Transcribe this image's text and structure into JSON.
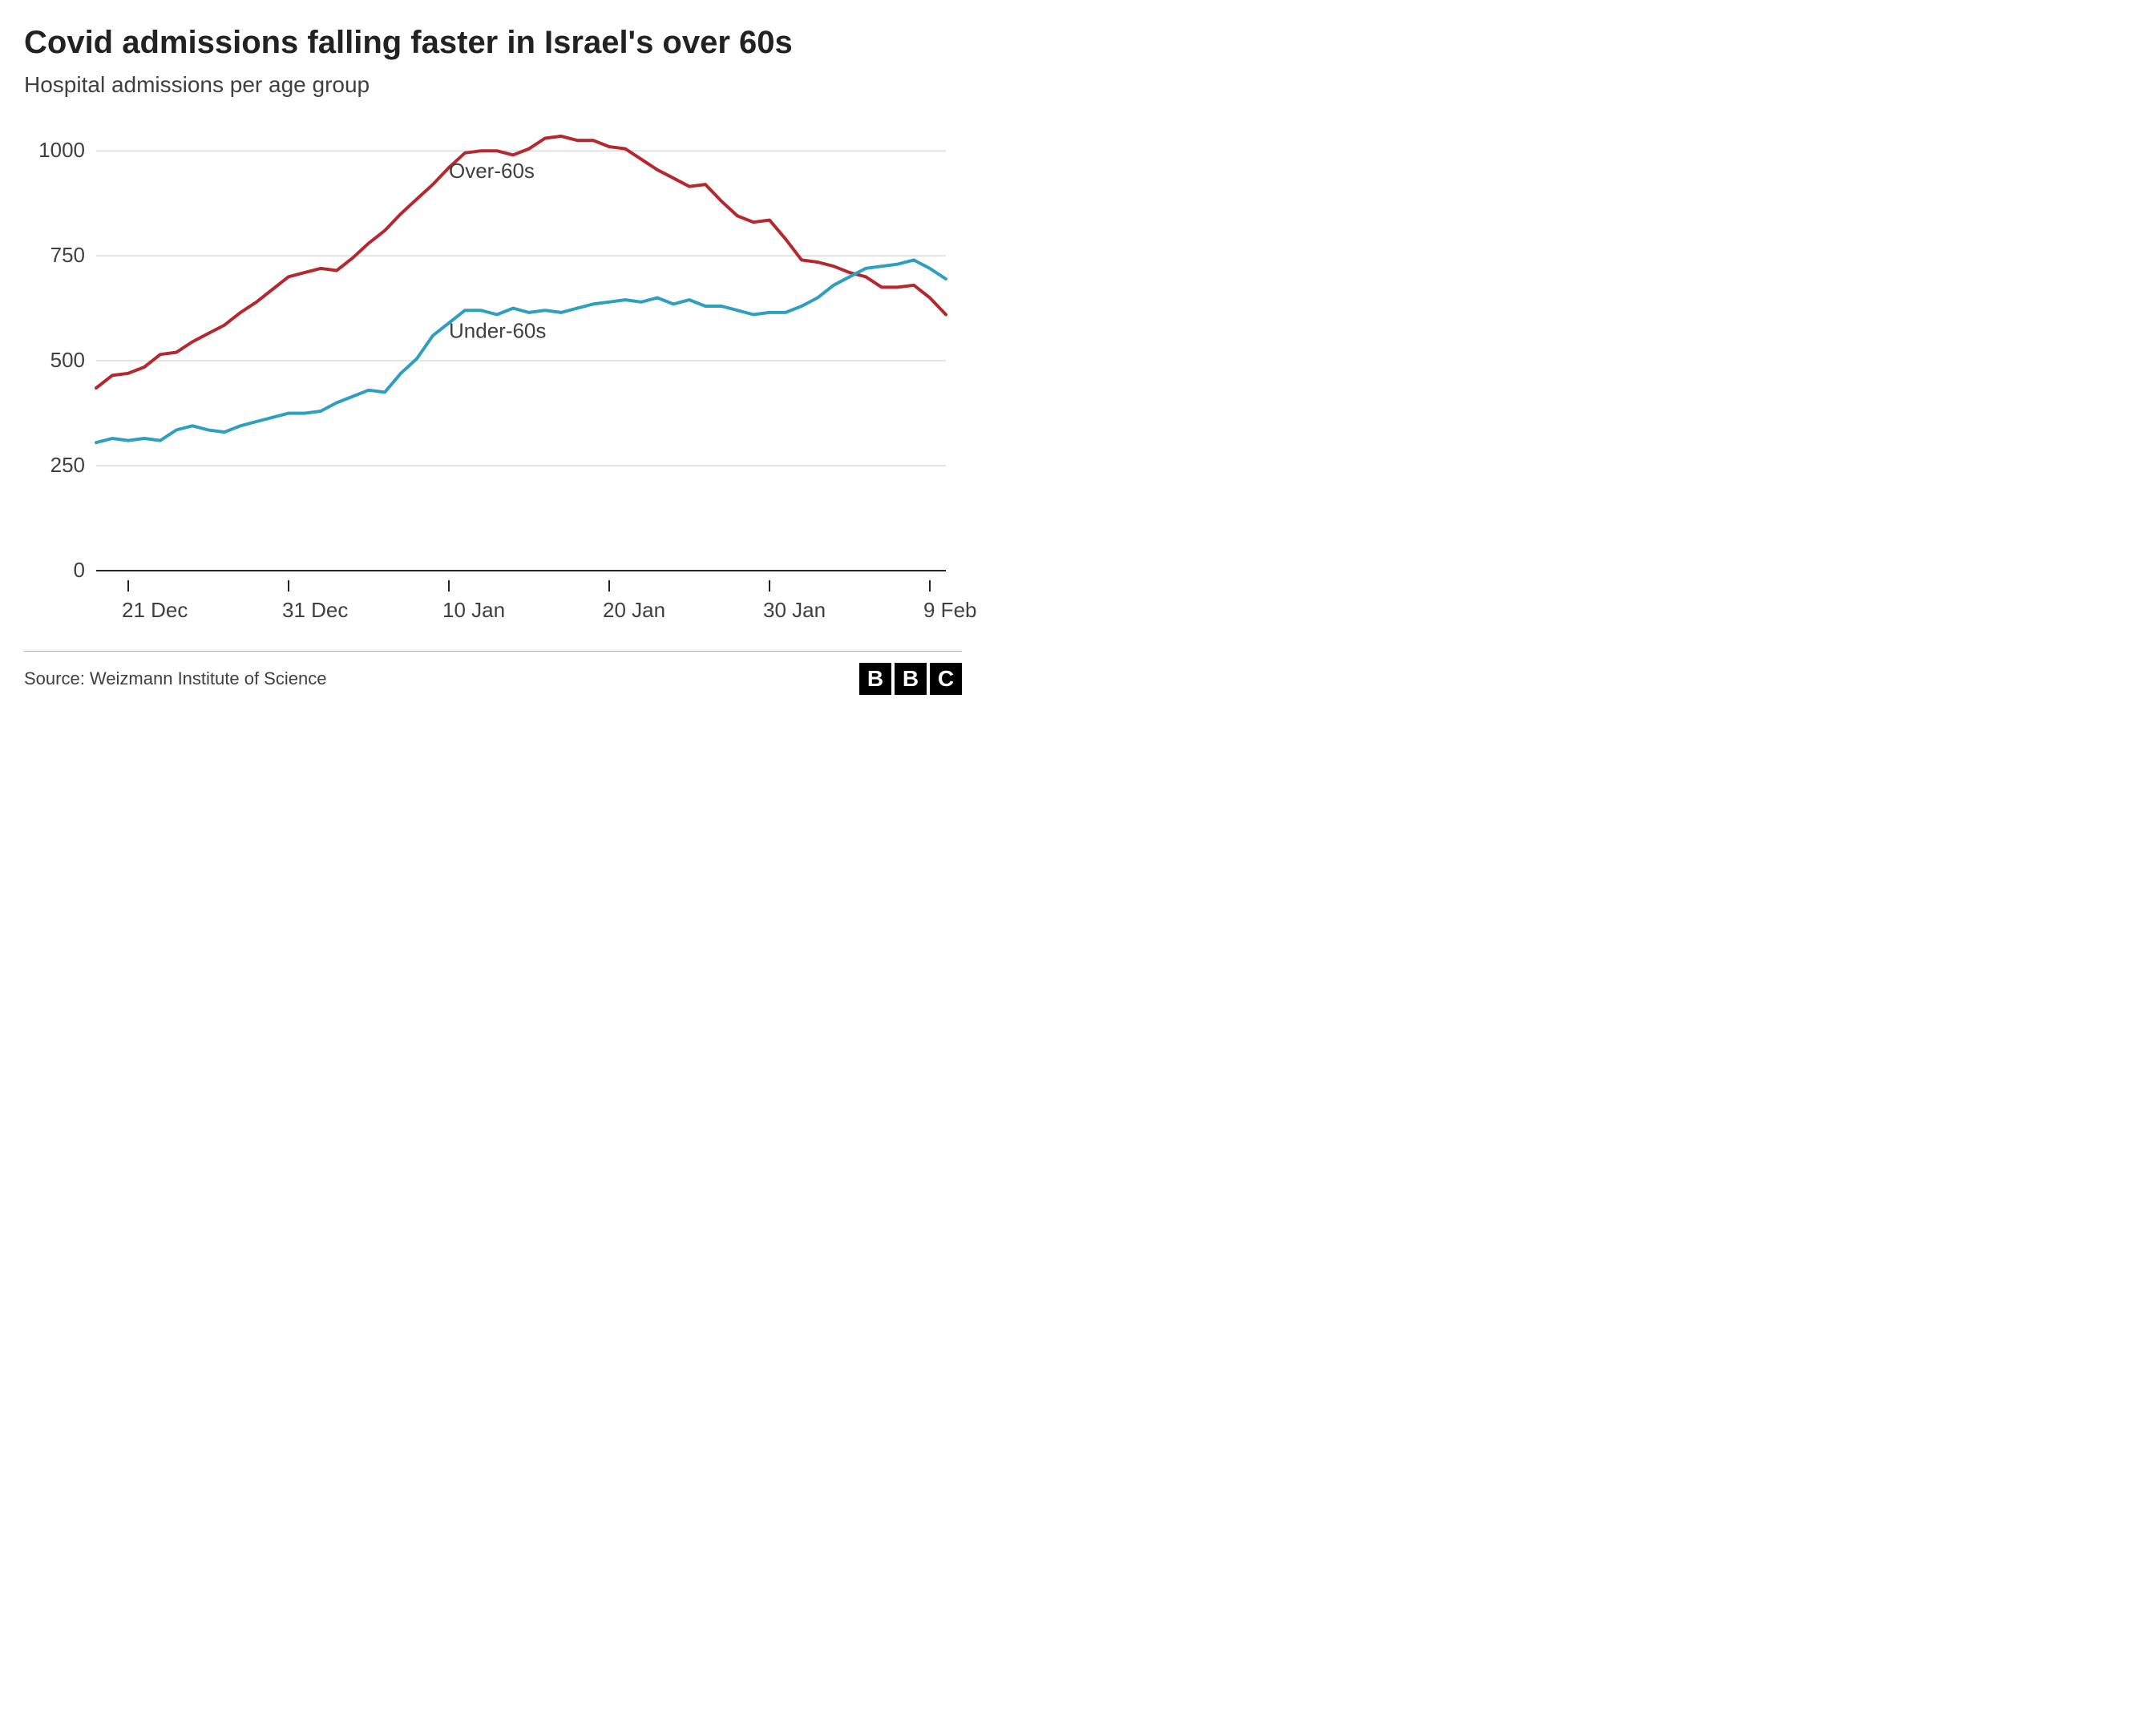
{
  "title": "Covid admissions falling faster in Israel's over 60s",
  "subtitle": "Hospital admissions per age group",
  "source": "Source: Weizmann Institute of Science",
  "logo": {
    "letters": [
      "B",
      "B",
      "C"
    ]
  },
  "chart": {
    "type": "line",
    "background_color": "#ffffff",
    "grid_color": "#dcdcdc",
    "axis_color": "#222222",
    "text_color": "#404040",
    "title_fontsize": 40,
    "subtitle_fontsize": 28,
    "tick_fontsize": 26,
    "label_fontsize": 26,
    "line_width": 4,
    "ylim": [
      0,
      1050
    ],
    "yticks": [
      0,
      250,
      500,
      750,
      1000
    ],
    "x_range_days": 53,
    "xticks": [
      {
        "day": 2,
        "label": "21 Dec"
      },
      {
        "day": 12,
        "label": "31 Dec"
      },
      {
        "day": 22,
        "label": "10 Jan"
      },
      {
        "day": 32,
        "label": "20 Jan"
      },
      {
        "day": 42,
        "label": "30 Jan"
      },
      {
        "day": 52,
        "label": "9 Feb"
      }
    ],
    "series": [
      {
        "name": "Over-60s",
        "label": "Over-60s",
        "color": "#b5282e",
        "label_pos": {
          "day": 22,
          "y": 935
        },
        "data": [
          [
            0,
            435
          ],
          [
            1,
            465
          ],
          [
            2,
            470
          ],
          [
            3,
            485
          ],
          [
            4,
            515
          ],
          [
            5,
            520
          ],
          [
            6,
            545
          ],
          [
            7,
            565
          ],
          [
            8,
            585
          ],
          [
            9,
            615
          ],
          [
            10,
            640
          ],
          [
            11,
            670
          ],
          [
            12,
            700
          ],
          [
            13,
            710
          ],
          [
            14,
            720
          ],
          [
            15,
            715
          ],
          [
            16,
            745
          ],
          [
            17,
            780
          ],
          [
            18,
            810
          ],
          [
            19,
            850
          ],
          [
            20,
            885
          ],
          [
            21,
            920
          ],
          [
            22,
            960
          ],
          [
            23,
            995
          ],
          [
            24,
            1000
          ],
          [
            25,
            1000
          ],
          [
            26,
            990
          ],
          [
            27,
            1005
          ],
          [
            28,
            1030
          ],
          [
            29,
            1035
          ],
          [
            30,
            1025
          ],
          [
            31,
            1025
          ],
          [
            32,
            1010
          ],
          [
            33,
            1005
          ],
          [
            34,
            980
          ],
          [
            35,
            955
          ],
          [
            36,
            935
          ],
          [
            37,
            915
          ],
          [
            38,
            920
          ],
          [
            39,
            880
          ],
          [
            40,
            845
          ],
          [
            41,
            830
          ],
          [
            42,
            835
          ],
          [
            43,
            790
          ],
          [
            44,
            740
          ],
          [
            45,
            735
          ],
          [
            46,
            725
          ],
          [
            47,
            710
          ],
          [
            48,
            700
          ],
          [
            49,
            675
          ],
          [
            50,
            675
          ],
          [
            51,
            680
          ],
          [
            52,
            650
          ],
          [
            53,
            610
          ]
        ]
      },
      {
        "name": "Under-60s",
        "label": "Under-60s",
        "color": "#2e9ec1",
        "label_pos": {
          "day": 22,
          "y": 555
        },
        "data": [
          [
            0,
            305
          ],
          [
            1,
            315
          ],
          [
            2,
            310
          ],
          [
            3,
            315
          ],
          [
            4,
            310
          ],
          [
            5,
            335
          ],
          [
            6,
            345
          ],
          [
            7,
            335
          ],
          [
            8,
            330
          ],
          [
            9,
            345
          ],
          [
            10,
            355
          ],
          [
            11,
            365
          ],
          [
            12,
            375
          ],
          [
            13,
            375
          ],
          [
            14,
            380
          ],
          [
            15,
            400
          ],
          [
            16,
            415
          ],
          [
            17,
            430
          ],
          [
            18,
            425
          ],
          [
            19,
            470
          ],
          [
            20,
            505
          ],
          [
            21,
            560
          ],
          [
            22,
            590
          ],
          [
            23,
            620
          ],
          [
            24,
            620
          ],
          [
            25,
            610
          ],
          [
            26,
            625
          ],
          [
            27,
            615
          ],
          [
            28,
            620
          ],
          [
            29,
            615
          ],
          [
            30,
            625
          ],
          [
            31,
            635
          ],
          [
            32,
            640
          ],
          [
            33,
            645
          ],
          [
            34,
            640
          ],
          [
            35,
            650
          ],
          [
            36,
            635
          ],
          [
            37,
            645
          ],
          [
            38,
            630
          ],
          [
            39,
            630
          ],
          [
            40,
            620
          ],
          [
            41,
            610
          ],
          [
            42,
            615
          ],
          [
            43,
            615
          ],
          [
            44,
            630
          ],
          [
            45,
            650
          ],
          [
            46,
            680
          ],
          [
            47,
            700
          ],
          [
            48,
            720
          ],
          [
            49,
            725
          ],
          [
            50,
            730
          ],
          [
            51,
            740
          ],
          [
            52,
            720
          ],
          [
            53,
            695
          ]
        ]
      }
    ]
  }
}
